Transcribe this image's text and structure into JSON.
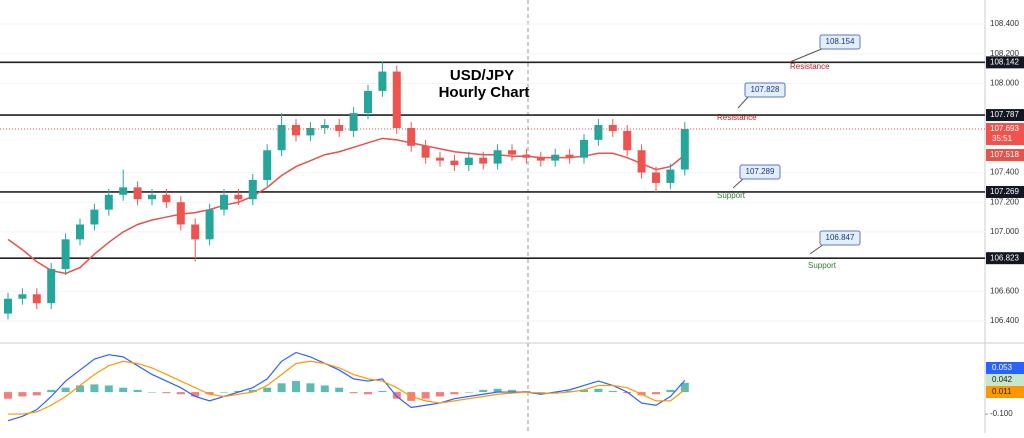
{
  "chart_data": {
    "type": "candlestick",
    "title": "USD/JPY Hourly Chart",
    "title_lines": [
      "USD/JPY",
      "Hourly Chart"
    ],
    "ylim": [
      106.272,
      108.562
    ],
    "yticks": [
      {
        "value": 108.4,
        "label": "108.400"
      },
      {
        "value": 108.2,
        "label": "108.200"
      },
      {
        "value": 108.0,
        "label": "108.000"
      },
      {
        "value": 107.4,
        "label": "107.400"
      },
      {
        "value": 107.2,
        "label": "107.200"
      },
      {
        "value": 107.0,
        "label": "107.000"
      },
      {
        "value": 106.6,
        "label": "106.600"
      },
      {
        "value": 106.4,
        "label": "106.400"
      }
    ],
    "up_color": "#26a69a",
    "down_color": "#ef5350",
    "grid": true,
    "open": [
      106.45,
      106.55,
      106.58,
      106.52,
      106.75,
      106.95,
      107.05,
      107.15,
      107.25,
      107.3,
      107.22,
      107.25,
      107.2,
      107.05,
      106.95,
      107.15,
      107.25,
      107.22,
      107.35,
      107.55,
      107.72,
      107.65,
      107.7,
      107.72,
      107.68,
      107.8,
      107.95,
      108.08,
      107.7,
      107.58,
      107.5,
      107.48,
      107.45,
      107.5,
      107.46,
      107.55,
      107.52,
      107.5,
      107.48,
      107.52,
      107.5,
      107.62,
      107.72,
      107.68,
      107.55,
      107.4,
      107.33,
      107.42
    ],
    "high": [
      106.59,
      106.62,
      106.62,
      106.79,
      106.99,
      107.09,
      107.19,
      107.29,
      107.42,
      107.34,
      107.29,
      107.29,
      107.24,
      107.09,
      107.19,
      107.29,
      107.29,
      107.39,
      107.59,
      107.8,
      107.76,
      107.74,
      107.76,
      107.76,
      107.84,
      107.99,
      108.15,
      108.12,
      107.74,
      107.62,
      107.54,
      107.52,
      107.54,
      107.54,
      107.59,
      107.59,
      107.56,
      107.54,
      107.56,
      107.56,
      107.66,
      107.76,
      107.76,
      107.72,
      107.59,
      107.44,
      107.46,
      107.74
    ],
    "low": [
      106.41,
      106.51,
      106.48,
      106.48,
      106.71,
      106.91,
      107.01,
      107.11,
      107.21,
      107.18,
      107.18,
      107.16,
      107.01,
      106.8,
      106.91,
      107.11,
      107.18,
      107.18,
      107.31,
      107.51,
      107.61,
      107.61,
      107.66,
      107.64,
      107.64,
      107.76,
      107.91,
      107.66,
      107.54,
      107.46,
      107.44,
      107.41,
      107.41,
      107.42,
      107.42,
      107.48,
      107.46,
      107.44,
      107.44,
      107.46,
      107.46,
      107.58,
      107.64,
      107.51,
      107.36,
      107.26,
      107.29,
      107.38
    ],
    "close": [
      106.55,
      106.58,
      106.52,
      106.75,
      106.95,
      107.05,
      107.15,
      107.25,
      107.3,
      107.22,
      107.25,
      107.2,
      107.05,
      106.95,
      107.15,
      107.25,
      107.22,
      107.35,
      107.55,
      107.72,
      107.65,
      107.7,
      107.72,
      107.68,
      107.8,
      107.95,
      108.08,
      107.7,
      107.58,
      107.5,
      107.48,
      107.45,
      107.5,
      107.46,
      107.55,
      107.52,
      107.5,
      107.48,
      107.52,
      107.5,
      107.62,
      107.72,
      107.68,
      107.55,
      107.4,
      107.33,
      107.42,
      107.693
    ],
    "ma": {
      "color": "#e5534b",
      "values": [
        106.95,
        106.88,
        106.8,
        106.74,
        106.72,
        106.76,
        106.85,
        106.93,
        107.0,
        107.05,
        107.08,
        107.1,
        107.12,
        107.13,
        107.15,
        107.18,
        107.2,
        107.24,
        107.3,
        107.38,
        107.44,
        107.48,
        107.52,
        107.54,
        107.57,
        107.6,
        107.63,
        107.62,
        107.6,
        107.58,
        107.56,
        107.54,
        107.53,
        107.52,
        107.52,
        107.51,
        107.51,
        107.5,
        107.5,
        107.5,
        107.51,
        107.53,
        107.53,
        107.5,
        107.46,
        107.42,
        107.44,
        107.518
      ]
    },
    "countdown": "35:51",
    "levels": [
      108.142,
      107.787,
      107.269,
      106.823
    ],
    "callouts": [
      {
        "value": 108.154,
        "note": "Resistance",
        "note_color": "#b71c1c"
      },
      {
        "value": 107.828,
        "note": "Resistance",
        "note_color": "#b71c1c"
      },
      {
        "value": 107.289,
        "note": "Support",
        "note_color": "#2e7d32"
      },
      {
        "value": 106.847,
        "note": "Support",
        "note_color": "#2e7d32"
      }
    ],
    "y2lim": [
      -0.186,
      0.214
    ],
    "y2ticks": [
      {
        "value": -0.1,
        "label": "-0.100"
      }
    ],
    "histogram": [
      -0.03,
      -0.02,
      -0.015,
      0.01,
      0.02,
      0.03,
      0.035,
      0.03,
      0.02,
      0.01,
      0.0,
      -0.005,
      -0.01,
      -0.02,
      -0.01,
      0.0,
      0.005,
      0.01,
      0.02,
      0.04,
      0.05,
      0.04,
      0.03,
      0.02,
      -0.005,
      -0.01,
      0.005,
      -0.03,
      -0.04,
      -0.03,
      -0.02,
      -0.01,
      0.0,
      0.01,
      0.015,
      0.01,
      0.005,
      0.0,
      0.0,
      0.005,
      0.01,
      0.015,
      0.005,
      -0.005,
      -0.015,
      -0.01,
      0.01,
      0.042
    ],
    "macd": [
      {
        "color": "#2962ff",
        "values": [
          -0.13,
          -0.11,
          -0.08,
          -0.02,
          0.05,
          0.1,
          0.15,
          0.17,
          0.16,
          0.12,
          0.08,
          0.05,
          0.02,
          -0.02,
          -0.04,
          -0.02,
          0.0,
          0.02,
          0.06,
          0.14,
          0.18,
          0.16,
          0.13,
          0.1,
          0.06,
          0.05,
          0.06,
          -0.02,
          -0.07,
          -0.06,
          -0.05,
          -0.03,
          -0.02,
          -0.01,
          0.0,
          0.0,
          0.0,
          -0.01,
          0.0,
          0.01,
          0.03,
          0.05,
          0.03,
          0.0,
          -0.05,
          -0.06,
          -0.02,
          0.053
        ]
      },
      {
        "color": "#ff9800",
        "values": [
          -0.1,
          -0.1,
          -0.09,
          -0.06,
          -0.02,
          0.03,
          0.08,
          0.12,
          0.14,
          0.13,
          0.11,
          0.08,
          0.05,
          0.02,
          -0.01,
          -0.02,
          -0.01,
          0.0,
          0.03,
          0.08,
          0.13,
          0.14,
          0.13,
          0.11,
          0.08,
          0.06,
          0.05,
          0.02,
          -0.02,
          -0.04,
          -0.05,
          -0.04,
          -0.03,
          -0.02,
          -0.01,
          -0.005,
          0.0,
          -0.005,
          -0.005,
          0.0,
          0.01,
          0.03,
          0.03,
          0.02,
          -0.01,
          -0.04,
          -0.04,
          0.011
        ]
      }
    ]
  }
}
